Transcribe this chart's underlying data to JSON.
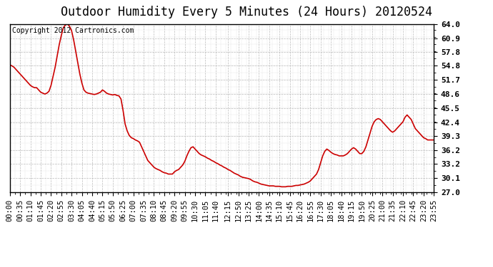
{
  "title": "Outdoor Humidity Every 5 Minutes (24 Hours) 20120524",
  "copyright_text": "Copyright 2012 Cartronics.com",
  "line_color": "#cc0000",
  "background_color": "#ffffff",
  "plot_bg_color": "#ffffff",
  "grid_color": "#bbbbbb",
  "ylim": [
    27.0,
    64.0
  ],
  "yticks": [
    27.0,
    30.1,
    33.2,
    36.2,
    39.3,
    42.4,
    45.5,
    48.6,
    51.7,
    54.8,
    57.8,
    60.9,
    64.0
  ],
  "title_fontsize": 12,
  "tick_fontsize": 7.5,
  "copyright_fontsize": 7,
  "x_tick_labels": [
    "00:00",
    "00:35",
    "01:10",
    "01:45",
    "02:20",
    "02:55",
    "03:30",
    "04:05",
    "04:40",
    "05:15",
    "05:50",
    "06:25",
    "07:00",
    "07:35",
    "08:10",
    "08:45",
    "09:20",
    "09:55",
    "10:30",
    "11:05",
    "11:40",
    "12:15",
    "12:50",
    "13:25",
    "14:00",
    "14:35",
    "15:10",
    "15:45",
    "16:20",
    "16:55",
    "17:30",
    "18:05",
    "18:40",
    "19:15",
    "19:50",
    "20:25",
    "21:00",
    "21:35",
    "22:10",
    "22:45",
    "23:20",
    "23:55"
  ],
  "humidity_values": [
    55.0,
    54.8,
    54.5,
    54.0,
    53.5,
    53.0,
    52.5,
    52.0,
    51.5,
    51.0,
    50.5,
    50.2,
    50.0,
    50.0,
    49.5,
    49.0,
    48.8,
    48.6,
    48.8,
    49.2,
    50.5,
    52.5,
    54.5,
    57.0,
    59.5,
    61.5,
    63.2,
    63.8,
    64.0,
    63.5,
    62.5,
    60.5,
    58.0,
    55.5,
    53.0,
    51.0,
    49.5,
    49.0,
    48.8,
    48.7,
    48.6,
    48.5,
    48.6,
    48.8,
    49.0,
    49.5,
    49.2,
    48.8,
    48.6,
    48.5,
    48.4,
    48.5,
    48.3,
    48.2,
    47.5,
    45.0,
    42.0,
    40.5,
    39.5,
    39.0,
    38.8,
    38.5,
    38.3,
    38.0,
    37.0,
    36.0,
    35.0,
    34.0,
    33.5,
    33.0,
    32.5,
    32.2,
    32.0,
    31.8,
    31.5,
    31.3,
    31.2,
    31.0,
    31.0,
    31.0,
    31.5,
    31.8,
    32.0,
    32.5,
    33.0,
    33.8,
    35.0,
    36.0,
    36.8,
    37.0,
    36.5,
    36.0,
    35.5,
    35.2,
    35.0,
    34.8,
    34.5,
    34.3,
    34.0,
    33.8,
    33.5,
    33.3,
    33.0,
    32.8,
    32.5,
    32.3,
    32.0,
    31.8,
    31.5,
    31.2,
    31.0,
    30.8,
    30.5,
    30.3,
    30.2,
    30.1,
    30.0,
    29.8,
    29.5,
    29.3,
    29.2,
    29.0,
    28.8,
    28.7,
    28.6,
    28.5,
    28.4,
    28.4,
    28.4,
    28.3,
    28.3,
    28.3,
    28.2,
    28.2,
    28.2,
    28.3,
    28.3,
    28.3,
    28.4,
    28.5,
    28.5,
    28.6,
    28.7,
    28.8,
    29.0,
    29.2,
    29.5,
    30.0,
    30.5,
    31.0,
    32.0,
    33.5,
    35.0,
    36.0,
    36.5,
    36.2,
    35.8,
    35.5,
    35.3,
    35.2,
    35.0,
    35.0,
    35.0,
    35.2,
    35.5,
    36.0,
    36.5,
    36.8,
    36.5,
    36.0,
    35.5,
    35.5,
    36.0,
    37.0,
    38.5,
    40.0,
    41.5,
    42.5,
    43.0,
    43.2,
    43.0,
    42.5,
    42.0,
    41.5,
    41.0,
    40.5,
    40.2,
    40.5,
    41.0,
    41.5,
    42.0,
    42.5,
    43.5,
    44.0,
    43.5,
    43.0,
    42.0,
    41.0,
    40.5,
    40.0,
    39.5,
    39.0,
    38.8,
    38.5,
    38.5,
    38.5,
    38.5
  ]
}
